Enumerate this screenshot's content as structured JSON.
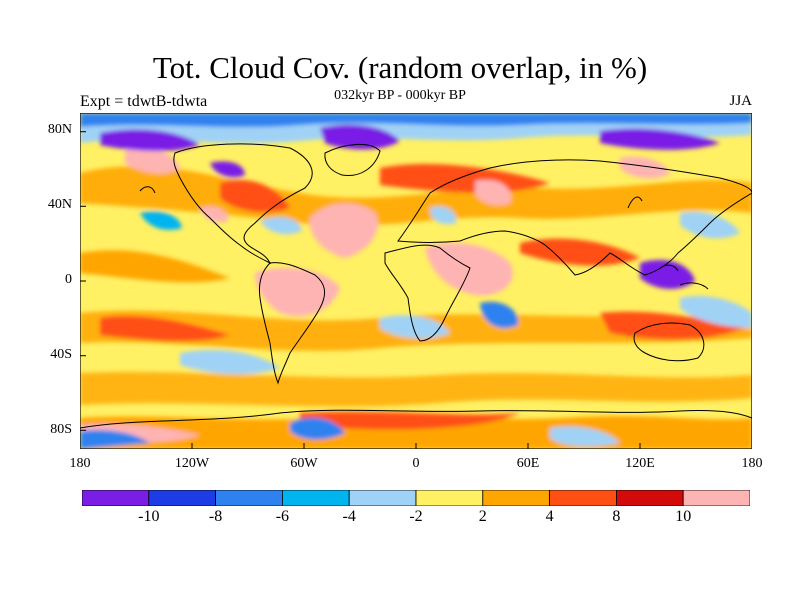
{
  "title": "Tot. Cloud Cov. (random overlap, in %)",
  "subtitle": "032kyr BP - 000kyr BP",
  "experiment": "Expt = tdwtB-tdwta",
  "season": "JJA",
  "lat_labels": [
    "80N",
    "40N",
    "0",
    "40S",
    "80S"
  ],
  "lon_labels": [
    "180",
    "120W",
    "60W",
    "0",
    "60E",
    "120E",
    "180"
  ],
  "colorbar": {
    "colors": [
      "#7a1ee6",
      "#1e3ce6",
      "#2d82f0",
      "#00b4f0",
      "#a0d2f5",
      "#fff064",
      "#ffa500",
      "#ff5014",
      "#d20a0a",
      "#ffb4b4"
    ],
    "labels": [
      "-10",
      "-8",
      "-6",
      "-4",
      "-2",
      "2",
      "4",
      "8",
      "10"
    ]
  }
}
